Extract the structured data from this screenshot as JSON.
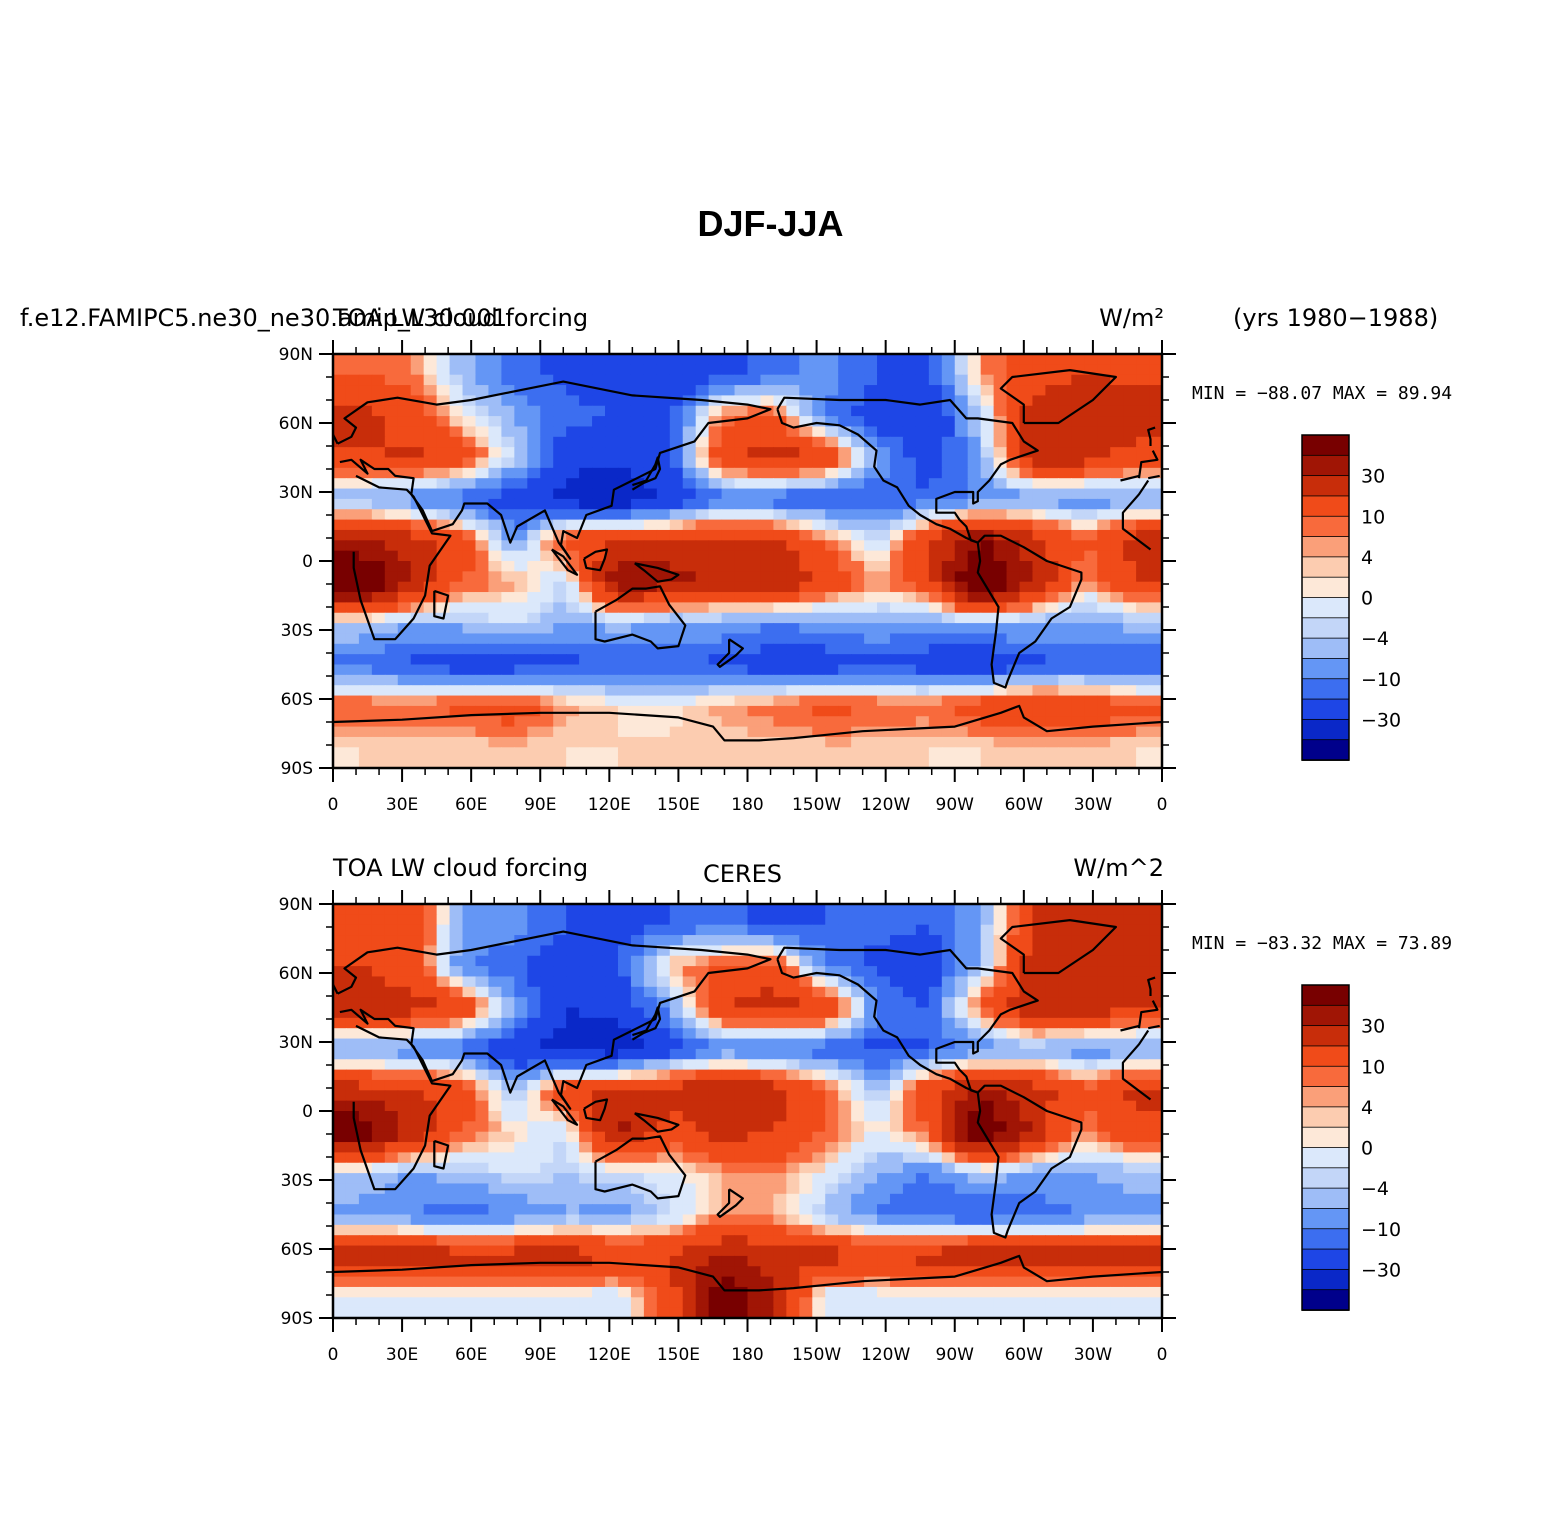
{
  "main_title": "DJF-JJA",
  "years_label": "(yrs 1980−1988)",
  "colors": {
    "palette": [
      "#00008b",
      "#0a28c8",
      "#1e46e6",
      "#3c6ef0",
      "#6496f5",
      "#9ebdf7",
      "#c3d6f8",
      "#dbe8fb",
      "#fde8d8",
      "#fcccb0",
      "#fa9f79",
      "#f86a3c",
      "#f04b19",
      "#c82d0a",
      "#a01505",
      "#780000"
    ]
  },
  "panels": [
    {
      "case_label": "f.e12.FAMIPC5.ne30_ne30.amip_L30.001",
      "variable_label": "TOA LW cloud forcing",
      "center_label": "",
      "units_label": "W/m²",
      "stats": "MIN = −88.07 MAX =  89.94"
    },
    {
      "case_label": "",
      "variable_label": "TOA LW cloud forcing",
      "center_label": "CERES",
      "units_label": "W/m^2",
      "stats": "MIN = −83.32 MAX =  73.89"
    }
  ],
  "axes": {
    "lat_labels": [
      "90N",
      "60N",
      "30N",
      "0",
      "30S",
      "60S",
      "90S"
    ],
    "lon_labels": [
      "0",
      "30E",
      "60E",
      "90E",
      "120E",
      "150E",
      "180",
      "150W",
      "120W",
      "90W",
      "60W",
      "30W",
      "0"
    ]
  },
  "colorbar": {
    "labels": [
      "30",
      "10",
      "4",
      "0",
      "−4",
      "−10",
      "−30"
    ]
  },
  "chart_data": [
    {
      "type": "heatmap",
      "title": "TOA LW cloud forcing",
      "subtitle": "f.e12.FAMIPC5.ne30_ne30.amip_L30.001",
      "units": "W/m²",
      "min": -88.07,
      "max": 89.94,
      "xlim": [
        0,
        360
      ],
      "ylim": [
        -90,
        90
      ],
      "colorbar_levels": [
        30,
        10,
        4,
        0,
        -4,
        -10,
        -30
      ],
      "grid": [
        [
          10,
          8,
          -8,
          -18,
          -22,
          -25,
          -28,
          -22,
          -18,
          -12,
          -20,
          -22,
          5,
          15,
          20,
          18
        ],
        [
          25,
          15,
          0,
          -10,
          -18,
          -20,
          -22,
          8,
          12,
          -15,
          -25,
          -30,
          -5,
          25,
          30,
          28
        ],
        [
          18,
          22,
          15,
          -5,
          -25,
          -28,
          -20,
          18,
          25,
          20,
          -10,
          -25,
          -10,
          25,
          25,
          15
        ],
        [
          -10,
          -15,
          -20,
          -25,
          -35,
          -40,
          -30,
          -18,
          -20,
          -22,
          -20,
          -18,
          -15,
          -12,
          -15,
          -12
        ],
        [
          30,
          25,
          15,
          -12,
          15,
          20,
          22,
          25,
          22,
          8,
          -5,
          20,
          40,
          25,
          10,
          25
        ],
        [
          60,
          30,
          10,
          5,
          -5,
          40,
          35,
          25,
          30,
          18,
          5,
          15,
          60,
          30,
          5,
          20
        ],
        [
          -5,
          -10,
          -8,
          -4,
          -10,
          -8,
          -12,
          -10,
          -15,
          -12,
          -10,
          -12,
          -8,
          -10,
          -12,
          -8
        ],
        [
          -18,
          -22,
          -25,
          -25,
          -22,
          -20,
          -20,
          -22,
          -25,
          -25,
          -22,
          -25,
          -28,
          -22,
          -20,
          -20
        ],
        [
          10,
          8,
          12,
          15,
          5,
          2,
          0,
          5,
          8,
          12,
          10,
          8,
          15,
          20,
          18,
          12
        ],
        [
          2,
          3,
          2,
          3,
          2,
          2,
          3,
          3,
          2,
          3,
          3,
          2,
          2,
          3,
          3,
          2
        ]
      ]
    },
    {
      "type": "heatmap",
      "title": "TOA LW cloud forcing",
      "subtitle": "CERES",
      "units": "W/m^2",
      "min": -83.32,
      "max": 73.89,
      "xlim": [
        0,
        360
      ],
      "ylim": [
        -90,
        90
      ],
      "colorbar_levels": [
        30,
        10,
        4,
        0,
        -4,
        -10,
        -30
      ],
      "grid": [
        [
          15,
          18,
          -10,
          -12,
          -20,
          -22,
          -20,
          -15,
          -25,
          -20,
          -18,
          -20,
          -10,
          20,
          25,
          22
        ],
        [
          20,
          15,
          -15,
          -20,
          -25,
          -22,
          5,
          10,
          15,
          -15,
          -22,
          -25,
          -8,
          25,
          28,
          25
        ],
        [
          25,
          25,
          18,
          -10,
          -30,
          -25,
          -12,
          20,
          25,
          22,
          -15,
          -20,
          10,
          30,
          30,
          20
        ],
        [
          -12,
          -15,
          -18,
          -28,
          -35,
          -38,
          -25,
          -15,
          -18,
          -20,
          -22,
          -20,
          -15,
          -10,
          -15,
          -12
        ],
        [
          25,
          22,
          15,
          -10,
          18,
          22,
          25,
          30,
          25,
          10,
          -8,
          18,
          35,
          25,
          12,
          22
        ],
        [
          50,
          28,
          10,
          2,
          -4,
          35,
          15,
          25,
          20,
          10,
          0,
          10,
          55,
          28,
          5,
          18
        ],
        [
          -6,
          -10,
          -8,
          -3,
          -6,
          -4,
          -2,
          4,
          6,
          0,
          -10,
          -15,
          -6,
          -12,
          -10,
          -8
        ],
        [
          -12,
          -15,
          -18,
          -15,
          -10,
          -12,
          -5,
          5,
          4,
          -8,
          -15,
          -20,
          -22,
          -18,
          -15,
          -12
        ],
        [
          30,
          28,
          25,
          25,
          25,
          22,
          20,
          30,
          28,
          25,
          20,
          25,
          30,
          28,
          25,
          25
        ],
        [
          -3,
          -4,
          -3,
          -2,
          -3,
          -4,
          15,
          50,
          30,
          -4,
          -3,
          -2,
          -3,
          -4,
          -3,
          -2
        ]
      ]
    }
  ]
}
